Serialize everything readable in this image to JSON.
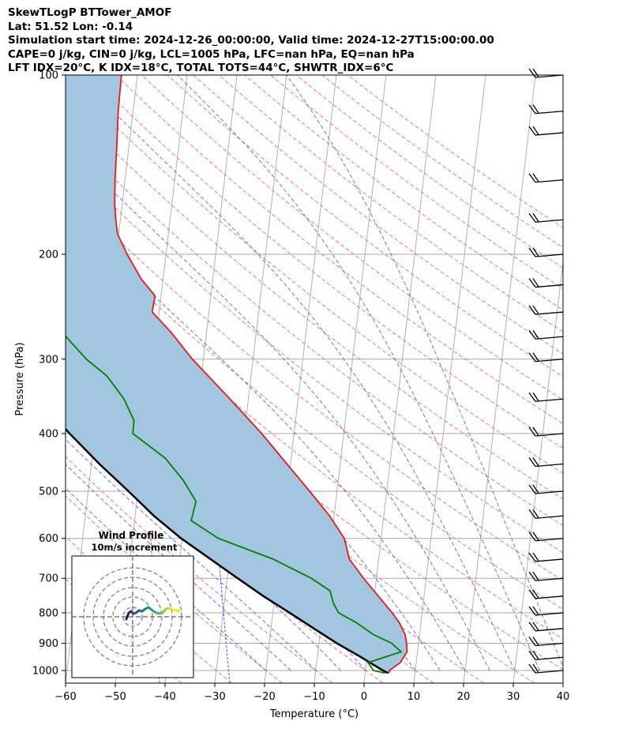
{
  "header": {
    "line1": "SkewTLogP BTTower_AMOF",
    "line2": "Lat: 51.52   Lon: -0.14",
    "line3": "Simulation start time: 2024-12-26_00:00:00, Valid time: 2024-12-27T15:00:00.00",
    "line4": "CAPE=0 j/kg, CIN=0 j/kg, LCL=1005 hPa, LFC=nan hPa, EQ=nan hPa",
    "line5": "LFT IDX=20°C, K IDX=18°C, TOTAL TOTS=44°C, SHWTR_IDX=6°C"
  },
  "chart_data": {
    "type": "line",
    "subtype": "skew-T log-p diagram",
    "xlabel": "Temperature (°C)",
    "ylabel": "Pressure (hPa)",
    "xlim": [
      -60,
      40
    ],
    "ylim": [
      1050,
      100
    ],
    "y_scale": "log",
    "x_ticks": [
      -60,
      -50,
      -40,
      -30,
      -20,
      -10,
      0,
      10,
      20,
      30,
      40
    ],
    "x_tick_labels": [
      "−60",
      "−50",
      "−40",
      "−30",
      "−20",
      "−10",
      "0",
      "10",
      "20",
      "30",
      "40"
    ],
    "y_ticks": [
      1000,
      900,
      800,
      700,
      600,
      500,
      400,
      300,
      200,
      100
    ],
    "y_tick_labels": [
      "1000",
      "900",
      "800",
      "700",
      "600",
      "500",
      "400",
      "300",
      "200",
      "100"
    ],
    "grid": true,
    "colors": {
      "temperature": "#e31a1c",
      "dewpoint": "#008000",
      "parcel": "#000000",
      "shading": "#a3c6e0",
      "dry_adiabat": "#ff5a5a",
      "moist_adiabat": "#4a58ff",
      "mixing_ratio": "#9a40c8",
      "isotherm": "#a8a8a8"
    },
    "series": [
      {
        "kind": "temperature",
        "pressure": [
          1010,
          1000,
          970,
          930,
          900,
          870,
          830,
          800,
          750,
          700,
          650,
          600,
          550,
          500,
          450,
          400,
          350,
          300,
          270,
          250,
          235,
          220,
          200,
          185,
          175,
          165,
          150,
          130,
          115,
          108,
          100
        ],
        "temperature": [
          4.8,
          4.8,
          6.8,
          7.9,
          7.6,
          7.1,
          5.6,
          4.0,
          0.8,
          -2.6,
          -5.9,
          -7.4,
          -10.9,
          -15.5,
          -20.7,
          -26.5,
          -33.7,
          -42.2,
          -47.2,
          -51.4,
          -51.2,
          -54.4,
          -57.8,
          -60.2,
          -60.9,
          -61.5,
          -62.0,
          -62.5,
          -63.0,
          -63.1,
          -63.2
        ]
      },
      {
        "kind": "dewpoint",
        "pressure": [
          1010,
          1000,
          970,
          930,
          900,
          870,
          830,
          800,
          770,
          735,
          700,
          650,
          600,
          560,
          520,
          480,
          440,
          400,
          380,
          350,
          320,
          300,
          270,
          250,
          235,
          215,
          200,
          180,
          160,
          150,
          135,
          120,
          108,
          100
        ],
        "temperature": [
          4.0,
          1.6,
          0.3,
          6.7,
          4.6,
          0.7,
          -3.1,
          -6.8,
          -8.1,
          -9.0,
          -13.1,
          -21.2,
          -32.7,
          -38.6,
          -38.1,
          -41.1,
          -45.3,
          -52.4,
          -52.5,
          -55.0,
          -59.0,
          -63.5,
          -69.1,
          -73.5,
          -79.4,
          -78.6,
          -79.7,
          -83.2,
          -87.8,
          -91.1,
          -96.0,
          -98.5,
          -99.2,
          -100.6
        ]
      },
      {
        "kind": "parcel",
        "pressure": [
          1010,
          1000,
          950,
          900,
          850,
          800,
          750,
          700,
          650,
          600,
          550,
          500,
          450,
          400,
          350,
          300,
          250,
          200,
          150,
          120,
          100
        ],
        "temperature": [
          4.6,
          3.5,
          -1.2,
          -6.4,
          -11.4,
          -16.6,
          -22.3,
          -27.9,
          -33.8,
          -40.2,
          -46.2,
          -51.9,
          -58.4,
          -65.1,
          -72.3,
          -80.2,
          -88.7,
          -98.5,
          -110.0,
          -117.5,
          -123.7
        ]
      }
    ],
    "wind_barbs": {
      "pressure": [
        1000,
        950,
        900,
        850,
        800,
        750,
        700,
        650,
        600,
        550,
        500,
        450,
        400,
        350,
        300,
        275,
        250,
        225,
        200,
        175,
        150,
        125,
        115,
        100
      ]
    },
    "inset": {
      "title": "Wind Profile",
      "subtitle": "10m/s increment"
    }
  }
}
